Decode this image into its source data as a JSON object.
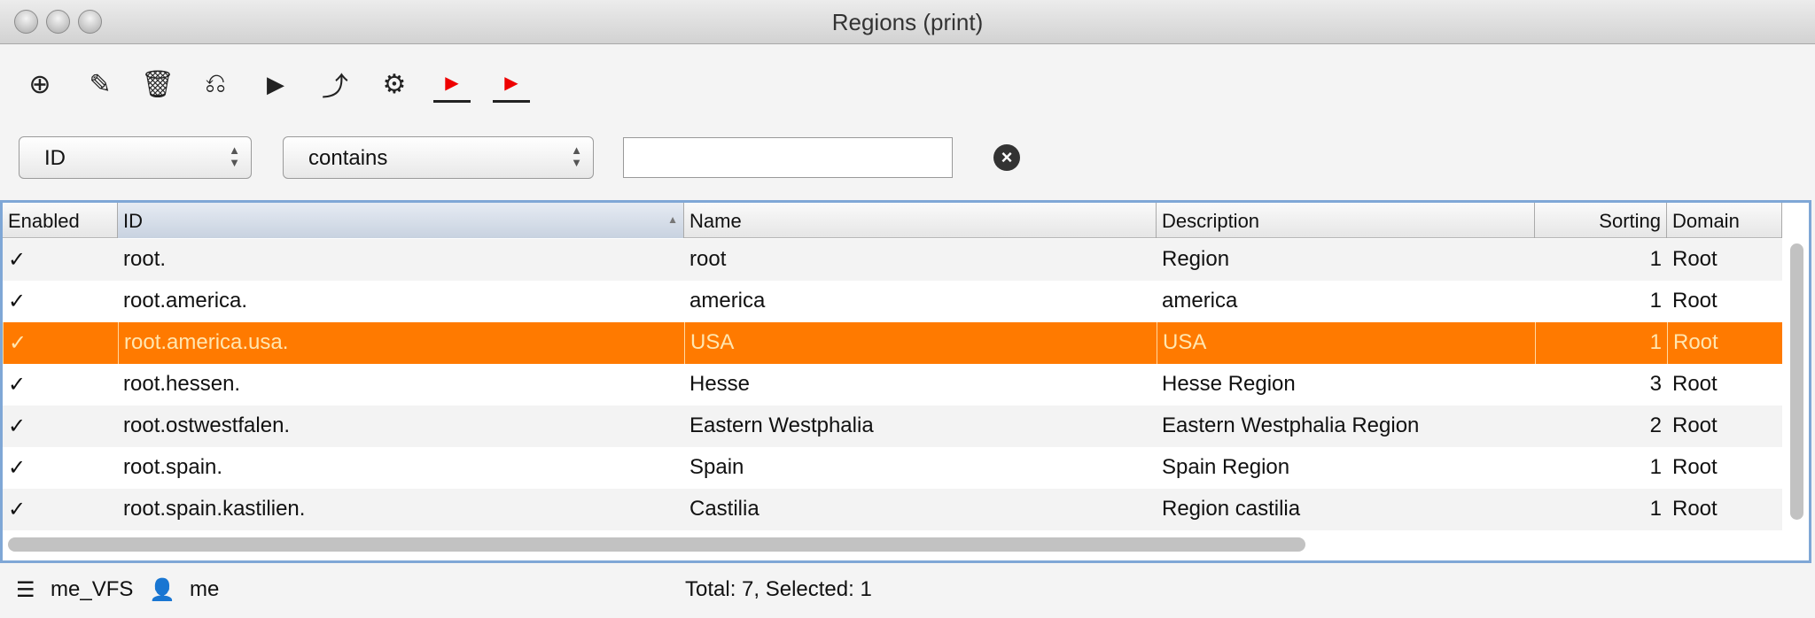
{
  "window": {
    "title": "Regions (print)"
  },
  "toolbar": [
    {
      "name": "add-icon",
      "glyph": "⊕"
    },
    {
      "name": "edit-pencil-icon",
      "glyph": "✎"
    },
    {
      "name": "delete-trash-icon",
      "glyph": "🗑"
    },
    {
      "name": "copy-transfer-icon",
      "glyph": "⎌"
    },
    {
      "name": "play-icon",
      "glyph": "▶"
    },
    {
      "name": "export-icon",
      "glyph": "⤴"
    },
    {
      "name": "settings-gear-icon",
      "glyph": "⚙"
    },
    {
      "name": "move-first-icon",
      "glyph": "▶"
    },
    {
      "name": "move-next-icon",
      "glyph": "▶"
    }
  ],
  "filter": {
    "field": "ID",
    "operator": "contains",
    "value": ""
  },
  "table": {
    "columns": [
      "Enabled",
      "ID",
      "Name",
      "Description",
      "Sorting",
      "Domain"
    ],
    "sorted_column": "ID",
    "rows": [
      {
        "enabled": "✓",
        "id": "root.",
        "name": "root",
        "description": "Region",
        "sorting": "1",
        "domain": "Root"
      },
      {
        "enabled": "✓",
        "id": "root.america.",
        "name": "america",
        "description": "america",
        "sorting": "1",
        "domain": "Root"
      },
      {
        "enabled": "✓",
        "id": "root.america.usa.",
        "name": "USA",
        "description": "USA",
        "sorting": "1",
        "domain": "Root",
        "selected": true
      },
      {
        "enabled": "✓",
        "id": "root.hessen.",
        "name": "Hesse",
        "description": "Hesse Region",
        "sorting": "3",
        "domain": "Root"
      },
      {
        "enabled": "✓",
        "id": "root.ostwestfalen.",
        "name": "Eastern Westphalia",
        "description": "Eastern Westphalia Region",
        "sorting": "2",
        "domain": "Root"
      },
      {
        "enabled": "✓",
        "id": "root.spain.",
        "name": "Spain",
        "description": "Spain Region",
        "sorting": "1",
        "domain": "Root"
      },
      {
        "enabled": "✓",
        "id": "root.spain.kastilien.",
        "name": "Castilia",
        "description": "Region castilia",
        "sorting": "1",
        "domain": "Root"
      }
    ]
  },
  "colors": {
    "selection": "#ff7a00",
    "table_border": "#7fa7d6"
  },
  "status": {
    "vfs": "me_VFS",
    "user": "me",
    "summary": "Total: 7, Selected: 1"
  }
}
